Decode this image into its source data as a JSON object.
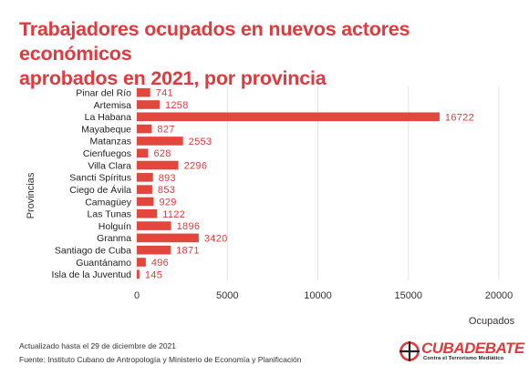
{
  "title_lines": [
    "Trabajadores ocupados en nuevos actores económicos",
    "aprobados en 2021, por provincia"
  ],
  "footer": {
    "updated": "Actualizado hasta el 29 de diciembre de 2021",
    "source": "Fuente: Instituto Cubano de Antropología y Ministerio de Economía y Planificación"
  },
  "logo": {
    "name": "CUBADEBATE",
    "tagline": "Contra el Terrorismo Mediático",
    "icon": "crossed-circle-icon"
  },
  "colors": {
    "title": "#e0393e",
    "bar": "#e2473d",
    "label": "#e0393e"
  },
  "chart_data": {
    "type": "bar",
    "orientation": "horizontal",
    "xlabel": "Ocupados",
    "ylabel": "Provincias",
    "xlim": [
      0,
      20000
    ],
    "xticks": [
      0,
      5000,
      10000,
      15000,
      20000
    ],
    "grid": true,
    "categories": [
      "Pinar del Río",
      "Artemisa",
      "La Habana",
      "Mayabeque",
      "Matanzas",
      "Cienfuegos",
      "Villa Clara",
      "Sancti Spíritus",
      "Ciego de Ávila",
      "Camagüey",
      "Las Tunas",
      "Holguín",
      "Granma",
      "Santiago de Cuba",
      "Guantánamo",
      "Isla de la Juventud"
    ],
    "values": [
      741,
      1258,
      16722,
      827,
      2553,
      628,
      2296,
      893,
      853,
      929,
      1122,
      1896,
      3420,
      1871,
      496,
      145
    ]
  }
}
